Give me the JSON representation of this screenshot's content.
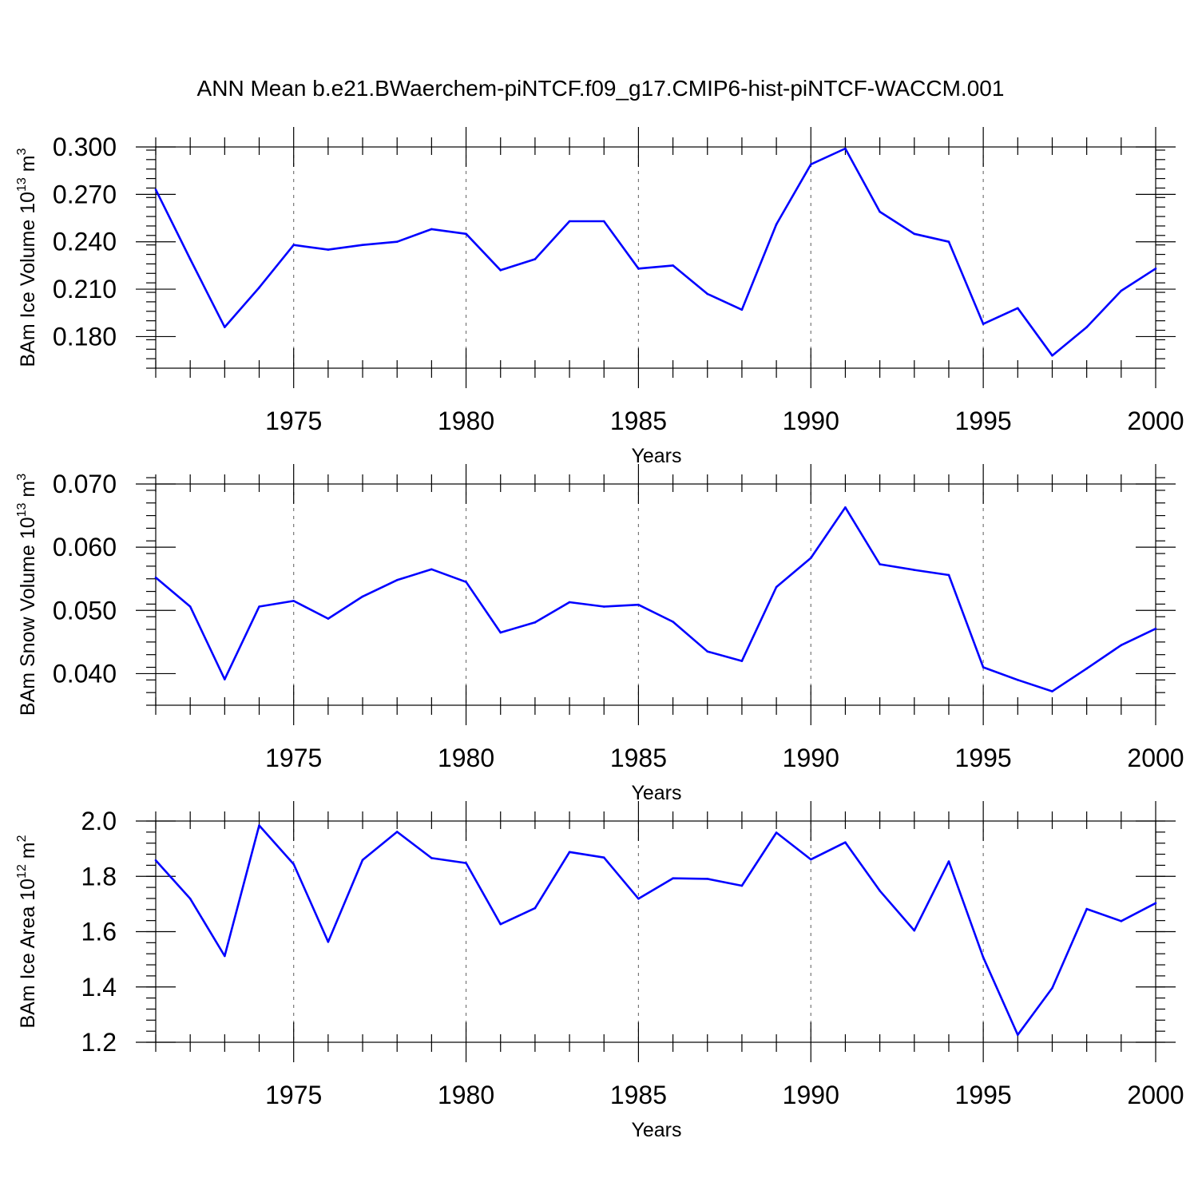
{
  "title": "ANN Mean b.e21.BWaerchem-piNTCF.f09_g17.CMIP6-hist-piNTCF-WACCM.001",
  "colors": {
    "line": "#0000ff",
    "axis": "#000000",
    "grid": "#777777"
  },
  "chart_data": [
    {
      "type": "line",
      "name": "ice-volume",
      "ylabel_main": "BAm Ice Volume 10",
      "ylabel_exp": "13",
      "ylabel_tail": " m",
      "ylabel_exp2": "3",
      "xlabel": "Years",
      "xlim": [
        1971,
        2000
      ],
      "ylim": [
        0.16,
        0.3
      ],
      "yticks": [
        0.18,
        0.21,
        0.24,
        0.27,
        0.3
      ],
      "ytick_labels": [
        "0.180",
        "0.210",
        "0.240",
        "0.270",
        "0.300"
      ],
      "yminor_step": 0.006,
      "grid_x": [
        1975,
        1980,
        1985,
        1990,
        1995
      ],
      "x": [
        1971,
        1972,
        1973,
        1974,
        1975,
        1976,
        1977,
        1978,
        1979,
        1980,
        1981,
        1982,
        1983,
        1984,
        1985,
        1986,
        1987,
        1988,
        1989,
        1990,
        1991,
        1992,
        1993,
        1994,
        1995,
        1996,
        1997,
        1998,
        1999,
        2000
      ],
      "values": [
        0.273,
        0.229,
        0.186,
        0.211,
        0.238,
        0.235,
        0.238,
        0.24,
        0.248,
        0.245,
        0.222,
        0.229,
        0.253,
        0.253,
        0.223,
        0.225,
        0.207,
        0.197,
        0.251,
        0.289,
        0.299,
        0.259,
        0.245,
        0.24,
        0.188,
        0.198,
        0.168,
        0.186,
        0.209,
        0.223
      ]
    },
    {
      "type": "line",
      "name": "snow-volume",
      "ylabel_main": "BAm Snow Volume 10",
      "ylabel_exp": "13",
      "ylabel_tail": " m",
      "ylabel_exp2": "3",
      "xlabel": "Years",
      "xlim": [
        1971,
        2000
      ],
      "ylim": [
        0.035,
        0.07
      ],
      "yticks": [
        0.04,
        0.05,
        0.06,
        0.07
      ],
      "ytick_labels": [
        "0.040",
        "0.050",
        "0.060",
        "0.070"
      ],
      "yminor_step": 0.002,
      "grid_x": [
        1975,
        1980,
        1985,
        1990,
        1995
      ],
      "x": [
        1971,
        1972,
        1973,
        1974,
        1975,
        1976,
        1977,
        1978,
        1979,
        1980,
        1981,
        1982,
        1983,
        1984,
        1985,
        1986,
        1987,
        1988,
        1989,
        1990,
        1991,
        1992,
        1993,
        1994,
        1995,
        1996,
        1997,
        1998,
        1999,
        2000
      ],
      "values": [
        0.0552,
        0.0506,
        0.0391,
        0.0506,
        0.0515,
        0.0487,
        0.0522,
        0.0548,
        0.0565,
        0.0545,
        0.0465,
        0.0481,
        0.0513,
        0.0506,
        0.0509,
        0.0482,
        0.0435,
        0.042,
        0.0537,
        0.0583,
        0.0663,
        0.0573,
        0.0564,
        0.0556,
        0.041,
        0.039,
        0.0372,
        0.0408,
        0.0445,
        0.0471
      ]
    },
    {
      "type": "line",
      "name": "ice-area",
      "ylabel_main": "BAm Ice Area 10",
      "ylabel_exp": "12",
      "ylabel_tail": " m",
      "ylabel_exp2": "2",
      "xlabel": "Years",
      "xlim": [
        1971,
        2000
      ],
      "ylim": [
        1.2,
        2.0
      ],
      "yticks": [
        1.2,
        1.4,
        1.6,
        1.8,
        2.0
      ],
      "ytick_labels": [
        "1.2",
        "1.4",
        "1.6",
        "1.8",
        "2.0"
      ],
      "yminor_step": 0.04,
      "grid_x": [
        1975,
        1980,
        1985,
        1990,
        1995
      ],
      "x": [
        1971,
        1972,
        1973,
        1974,
        1975,
        1976,
        1977,
        1978,
        1979,
        1980,
        1981,
        1982,
        1983,
        1984,
        1985,
        1986,
        1987,
        1988,
        1989,
        1990,
        1991,
        1992,
        1993,
        1994,
        1995,
        1996,
        1997,
        1998,
        1999,
        2000
      ],
      "values": [
        1.858,
        1.719,
        1.512,
        1.984,
        1.844,
        1.563,
        1.859,
        1.961,
        1.866,
        1.848,
        1.627,
        1.685,
        1.888,
        1.868,
        1.719,
        1.793,
        1.791,
        1.766,
        1.958,
        1.861,
        1.923,
        1.748,
        1.604,
        1.854,
        1.507,
        1.227,
        1.396,
        1.682,
        1.638,
        1.703
      ]
    }
  ],
  "xtick_labels": [
    "1975",
    "1980",
    "1985",
    "1990",
    "1995",
    "2000"
  ]
}
